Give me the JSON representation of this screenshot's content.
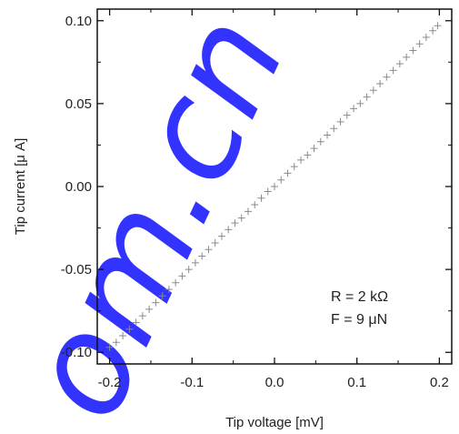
{
  "chart_data": {
    "type": "scatter",
    "title": "",
    "xlabel": "Tip voltage [mV]",
    "ylabel": "Tip current [μ A]",
    "xlim": [
      -0.215,
      0.215
    ],
    "ylim": [
      -0.107,
      0.107
    ],
    "x_ticks": [
      -0.2,
      -0.1,
      0.0,
      0.1,
      0.2
    ],
    "x_tick_labels": [
      "-0.2",
      "-0.1",
      "0.0",
      "0.1",
      "0.2"
    ],
    "y_ticks": [
      -0.1,
      -0.05,
      0.0,
      0.05,
      0.1
    ],
    "y_tick_labels": [
      "-0.10",
      "-0.05",
      "0.00",
      "0.05",
      "0.10"
    ],
    "grid": false,
    "annotations": [
      "R = 2 kΩ",
      "F = 9 μN"
    ],
    "annotation_placement": "bottom-right",
    "marker": "plus",
    "marker_color": "#8a8a8a",
    "series": [
      {
        "x": [
          -0.2,
          -0.192,
          -0.184,
          -0.176,
          -0.168,
          -0.16,
          -0.152,
          -0.144,
          -0.136,
          -0.128,
          -0.12,
          -0.112,
          -0.104,
          -0.096,
          -0.088,
          -0.08,
          -0.072,
          -0.064,
          -0.056,
          -0.048,
          -0.04,
          -0.032,
          -0.024,
          -0.016,
          -0.008,
          0.0,
          0.008,
          0.016,
          0.024,
          0.032,
          0.04,
          0.048,
          0.056,
          0.064,
          0.072,
          0.08,
          0.088,
          0.096,
          0.104,
          0.112,
          0.12,
          0.128,
          0.136,
          0.144,
          0.152,
          0.16,
          0.168,
          0.176,
          0.184,
          0.192,
          0.198
        ],
        "y": [
          -0.097,
          -0.094,
          -0.09,
          -0.086,
          -0.082,
          -0.078,
          -0.074,
          -0.07,
          -0.066,
          -0.062,
          -0.058,
          -0.054,
          -0.05,
          -0.046,
          -0.042,
          -0.038,
          -0.034,
          -0.03,
          -0.026,
          -0.022,
          -0.019,
          -0.015,
          -0.011,
          -0.007,
          -0.003,
          0.0,
          0.004,
          0.008,
          0.012,
          0.016,
          0.019,
          0.023,
          0.027,
          0.031,
          0.035,
          0.039,
          0.043,
          0.047,
          0.05,
          0.054,
          0.058,
          0.062,
          0.066,
          0.07,
          0.074,
          0.078,
          0.082,
          0.086,
          0.09,
          0.094,
          0.097
        ]
      }
    ]
  },
  "watermark": {
    "text": "om.cn",
    "color": "#1010ff"
  }
}
